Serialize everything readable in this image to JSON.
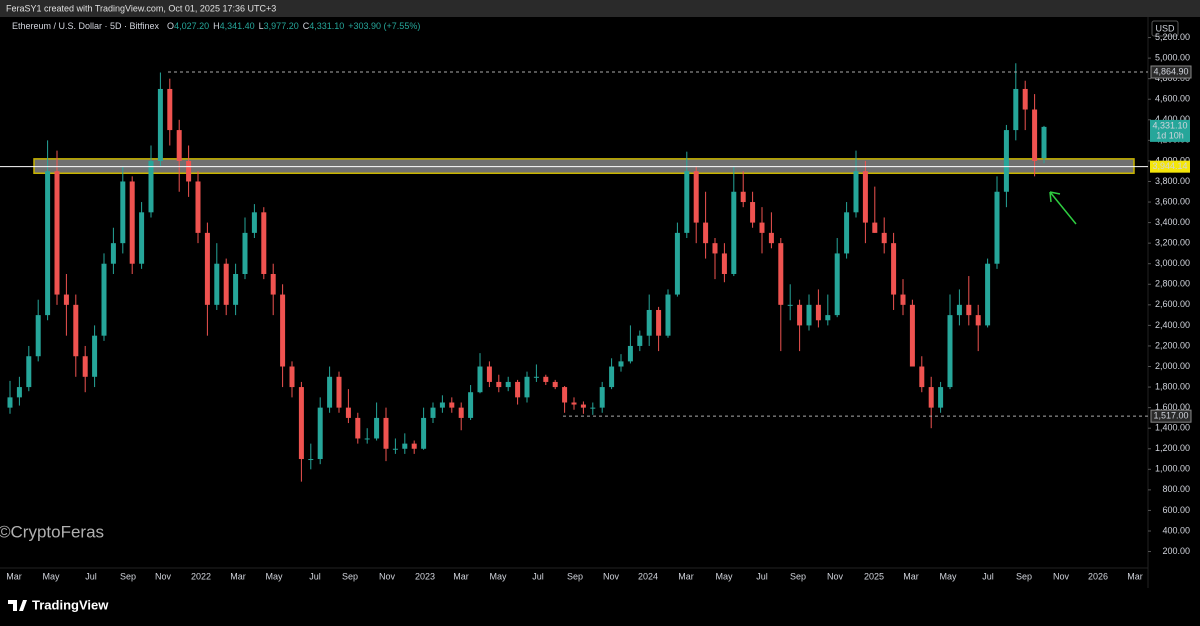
{
  "header": {
    "credit": "FeraSY1 created with TradingView.com, Oct 01, 2025 17:36 UTC+3"
  },
  "footer": {
    "brand": "TradingView"
  },
  "chart_data": {
    "type": "candlestick",
    "legend": {
      "symbol": "Ethereum / U.S. Dollar · 5D · Bitfinex",
      "fields": [
        {
          "key": "O",
          "value": "4,027.20"
        },
        {
          "key": "H",
          "value": "4,341.40"
        },
        {
          "key": "L",
          "value": "3,977.20"
        },
        {
          "key": "C",
          "value": "4,331.10"
        }
      ],
      "change": "+303.90 (+7.55%)"
    },
    "currency": "USD",
    "watermark": "©CryptoFeras",
    "up_color": "#26a69a",
    "down_color": "#ef5350",
    "ylim": [
      40,
      5400
    ],
    "yticks": [
      {
        "value": 200,
        "label": "200.00"
      },
      {
        "value": 400,
        "label": "400.00"
      },
      {
        "value": 600,
        "label": "600.00"
      },
      {
        "value": 800,
        "label": "800.00"
      },
      {
        "value": 1000,
        "label": "1,000.00"
      },
      {
        "value": 1200,
        "label": "1,200.00"
      },
      {
        "value": 1400,
        "label": "1,400.00"
      },
      {
        "value": 1600,
        "label": "1,600.00"
      },
      {
        "value": 1800,
        "label": "1,800.00"
      },
      {
        "value": 2000,
        "label": "2,000.00"
      },
      {
        "value": 2200,
        "label": "2,200.00"
      },
      {
        "value": 2400,
        "label": "2,400.00"
      },
      {
        "value": 2600,
        "label": "2,600.00"
      },
      {
        "value": 2800,
        "label": "2,800.00"
      },
      {
        "value": 3000,
        "label": "3,000.00"
      },
      {
        "value": 3200,
        "label": "3,200.00"
      },
      {
        "value": 3400,
        "label": "3,400.00"
      },
      {
        "value": 3600,
        "label": "3,600.00"
      },
      {
        "value": 3800,
        "label": "3,800.00"
      },
      {
        "value": 4000,
        "label": "4,000.00"
      },
      {
        "value": 4200,
        "label": "4,200.00"
      },
      {
        "value": 4400,
        "label": "4,400.00"
      },
      {
        "value": 4600,
        "label": "4,600.00"
      },
      {
        "value": 4800,
        "label": "4,800.00"
      },
      {
        "value": 5000,
        "label": "5,000.00"
      },
      {
        "value": 5200,
        "label": "5,200.00"
      }
    ],
    "xticks": [
      "Mar",
      "May",
      "Jul",
      "Sep",
      "Nov",
      "2022",
      "Mar",
      "May",
      "Jul",
      "Sep",
      "Nov",
      "2023",
      "Mar",
      "May",
      "Jul",
      "Sep",
      "Nov",
      "2024",
      "Mar",
      "May",
      "Jul",
      "Sep",
      "Nov",
      "2025",
      "Mar",
      "May",
      "Jul",
      "Sep",
      "Nov",
      "2026",
      "Mar"
    ],
    "levels": [
      {
        "value": 4864.9,
        "label": "4,864.90"
      },
      {
        "value": 1517,
        "label": "1,517.00"
      }
    ],
    "support": {
      "value": 3944.14,
      "label": "3,944.14"
    },
    "zone": [
      3880,
      4020
    ],
    "last_price": {
      "value": 4331.1,
      "label": "4,331.10",
      "countdown": "1d 10h"
    },
    "candles": [
      [
        1600,
        1860,
        1540,
        1700
      ],
      [
        1700,
        1900,
        1620,
        1800
      ],
      [
        1800,
        2200,
        1760,
        2100
      ],
      [
        2100,
        2650,
        2050,
        2500
      ],
      [
        2500,
        4200,
        2450,
        3900
      ],
      [
        3900,
        4100,
        2600,
        2700
      ],
      [
        2700,
        2900,
        2300,
        2600
      ],
      [
        2600,
        2700,
        1900,
        2100
      ],
      [
        2100,
        2200,
        1750,
        1900
      ],
      [
        1900,
        2400,
        1800,
        2300
      ],
      [
        2300,
        3100,
        2250,
        3000
      ],
      [
        3000,
        3350,
        2900,
        3200
      ],
      [
        3200,
        3950,
        3100,
        3800
      ],
      [
        3800,
        3850,
        2900,
        3000
      ],
      [
        3000,
        3600,
        2950,
        3500
      ],
      [
        3500,
        4150,
        3450,
        4000
      ],
      [
        4000,
        4860,
        3950,
        4700
      ],
      [
        4700,
        4800,
        4150,
        4300
      ],
      [
        4300,
        4400,
        3700,
        4000
      ],
      [
        4000,
        4150,
        3650,
        3800
      ],
      [
        3800,
        3900,
        3200,
        3300
      ],
      [
        3300,
        3400,
        2300,
        2600
      ],
      [
        2600,
        3200,
        2550,
        3000
      ],
      [
        3000,
        3050,
        2500,
        2600
      ],
      [
        2600,
        3000,
        2500,
        2900
      ],
      [
        2900,
        3450,
        2850,
        3300
      ],
      [
        3300,
        3580,
        3250,
        3500
      ],
      [
        3500,
        3550,
        2850,
        2900
      ],
      [
        2900,
        3000,
        2500,
        2700
      ],
      [
        2700,
        2800,
        1800,
        2000
      ],
      [
        2000,
        2050,
        1700,
        1800
      ],
      [
        1800,
        1850,
        880,
        1100
      ],
      [
        1100,
        1250,
        1000,
        1100
      ],
      [
        1100,
        1700,
        1050,
        1600
      ],
      [
        1600,
        2000,
        1550,
        1900
      ],
      [
        1900,
        1950,
        1550,
        1600
      ],
      [
        1600,
        1780,
        1450,
        1500
      ],
      [
        1500,
        1550,
        1250,
        1300
      ],
      [
        1300,
        1400,
        1250,
        1300
      ],
      [
        1300,
        1650,
        1280,
        1500
      ],
      [
        1500,
        1600,
        1080,
        1200
      ],
      [
        1200,
        1300,
        1150,
        1200
      ],
      [
        1200,
        1350,
        1150,
        1250
      ],
      [
        1250,
        1280,
        1150,
        1200
      ],
      [
        1200,
        1600,
        1190,
        1500
      ],
      [
        1500,
        1650,
        1450,
        1600
      ],
      [
        1600,
        1720,
        1550,
        1650
      ],
      [
        1650,
        1700,
        1550,
        1600
      ],
      [
        1600,
        1650,
        1380,
        1500
      ],
      [
        1500,
        1820,
        1480,
        1750
      ],
      [
        1750,
        2130,
        1740,
        2000
      ],
      [
        2000,
        2050,
        1800,
        1850
      ],
      [
        1850,
        1920,
        1750,
        1800
      ],
      [
        1800,
        1900,
        1760,
        1850
      ],
      [
        1850,
        1870,
        1630,
        1700
      ],
      [
        1700,
        1950,
        1650,
        1900
      ],
      [
        1900,
        2020,
        1850,
        1900
      ],
      [
        1900,
        1920,
        1820,
        1850
      ],
      [
        1850,
        1870,
        1780,
        1800
      ],
      [
        1800,
        1810,
        1550,
        1650
      ],
      [
        1650,
        1700,
        1580,
        1630
      ],
      [
        1630,
        1660,
        1540,
        1600
      ],
      [
        1600,
        1650,
        1530,
        1600
      ],
      [
        1600,
        1850,
        1550,
        1800
      ],
      [
        1800,
        2080,
        1780,
        2000
      ],
      [
        2000,
        2120,
        1950,
        2050
      ],
      [
        2050,
        2400,
        2030,
        2200
      ],
      [
        2200,
        2350,
        2150,
        2300
      ],
      [
        2300,
        2700,
        2200,
        2550
      ],
      [
        2550,
        2580,
        2150,
        2300
      ],
      [
        2300,
        2750,
        2280,
        2700
      ],
      [
        2700,
        3400,
        2680,
        3300
      ],
      [
        3300,
        4090,
        3250,
        3900
      ],
      [
        3900,
        3950,
        3200,
        3400
      ],
      [
        3400,
        3700,
        3050,
        3200
      ],
      [
        3200,
        3250,
        2850,
        3100
      ],
      [
        3100,
        3200,
        2820,
        2900
      ],
      [
        2900,
        3950,
        2880,
        3700
      ],
      [
        3700,
        3900,
        3550,
        3600
      ],
      [
        3600,
        3700,
        3350,
        3400
      ],
      [
        3400,
        3550,
        3100,
        3300
      ],
      [
        3300,
        3500,
        3150,
        3200
      ],
      [
        3200,
        3250,
        2150,
        2600
      ],
      [
        2600,
        2800,
        2450,
        2600
      ],
      [
        2600,
        2650,
        2150,
        2400
      ],
      [
        2400,
        2700,
        2350,
        2600
      ],
      [
        2600,
        2750,
        2380,
        2450
      ],
      [
        2450,
        2700,
        2400,
        2500
      ],
      [
        2500,
        3250,
        2480,
        3100
      ],
      [
        3100,
        3600,
        3050,
        3500
      ],
      [
        3500,
        4100,
        3450,
        3900
      ],
      [
        3900,
        4000,
        3200,
        3400
      ],
      [
        3400,
        3750,
        3300,
        3300
      ],
      [
        3300,
        3450,
        3100,
        3200
      ],
      [
        3200,
        3300,
        2550,
        2700
      ],
      [
        2700,
        2850,
        2500,
        2600
      ],
      [
        2600,
        2650,
        2000,
        2000
      ],
      [
        2000,
        2100,
        1750,
        1800
      ],
      [
        1800,
        1900,
        1400,
        1600
      ],
      [
        1600,
        1850,
        1550,
        1800
      ],
      [
        1800,
        2700,
        1780,
        2500
      ],
      [
        2500,
        2750,
        2400,
        2600
      ],
      [
        2600,
        2880,
        2400,
        2500
      ],
      [
        2500,
        2600,
        2150,
        2400
      ],
      [
        2400,
        3050,
        2380,
        3000
      ],
      [
        3000,
        3850,
        2950,
        3700
      ],
      [
        3700,
        4350,
        3550,
        4300
      ],
      [
        4300,
        4950,
        4200,
        4700
      ],
      [
        4700,
        4780,
        4300,
        4500
      ],
      [
        4500,
        4650,
        3850,
        4000
      ],
      [
        4027.2,
        4341.4,
        3977.2,
        4331.1
      ]
    ]
  }
}
